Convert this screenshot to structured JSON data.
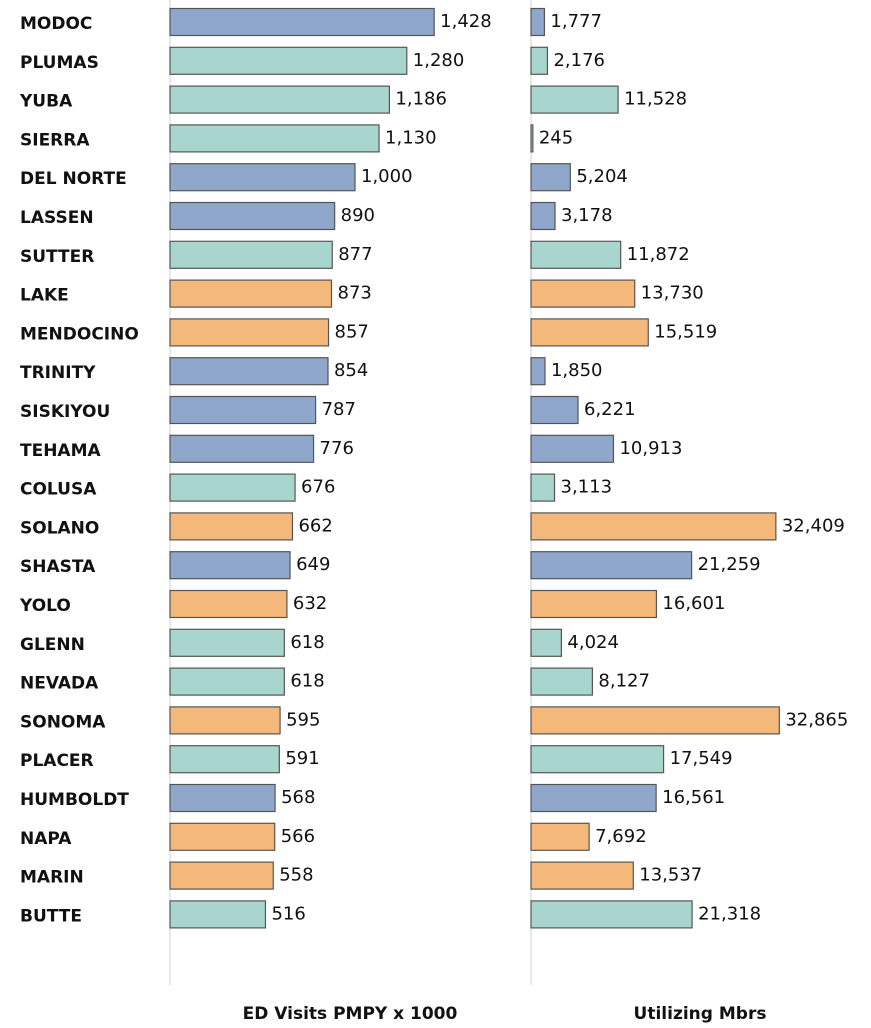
{
  "chart_data": {
    "type": "bar",
    "orientation": "horizontal",
    "categories": [
      "MODOC",
      "PLUMAS",
      "YUBA",
      "SIERRA",
      "DEL NORTE",
      "LASSEN",
      "SUTTER",
      "LAKE",
      "MENDOCINO",
      "TRINITY",
      "SISKIYOU",
      "TEHAMA",
      "COLUSA",
      "SOLANO",
      "SHASTA",
      "YOLO",
      "GLENN",
      "NEVADA",
      "SONOMA",
      "PLACER",
      "HUMBOLDT",
      "NAPA",
      "MARIN",
      "BUTTE"
    ],
    "bar_colors": [
      "#8fa7ca",
      "#a8d5cd",
      "#a8d5cd",
      "#a8d5cd",
      "#8fa7ca",
      "#8fa7ca",
      "#a8d5cd",
      "#f5b87b",
      "#f5b87b",
      "#8fa7ca",
      "#8fa7ca",
      "#8fa7ca",
      "#a8d5cd",
      "#f5b87b",
      "#8fa7ca",
      "#f5b87b",
      "#a8d5cd",
      "#a8d5cd",
      "#f5b87b",
      "#a8d5cd",
      "#8fa7ca",
      "#f5b87b",
      "#f5b87b",
      "#a8d5cd"
    ],
    "series": [
      {
        "name": "ED Visits PMPY x 1000",
        "xlim": [
          0,
          2000
        ],
        "values": [
          1428,
          1280,
          1186,
          1130,
          1000,
          890,
          877,
          873,
          857,
          854,
          787,
          776,
          676,
          662,
          649,
          632,
          618,
          618,
          595,
          591,
          568,
          566,
          558,
          516
        ],
        "value_labels": [
          "1,428",
          "1,280",
          "1,186",
          "1,130",
          "1,000",
          "890",
          "877",
          "873",
          "857",
          "854",
          "787",
          "776",
          "676",
          "662",
          "649",
          "632",
          "618",
          "618",
          "595",
          "591",
          "568",
          "566",
          "558",
          "516"
        ]
      },
      {
        "name": "Utilizing Mbrs",
        "xlim": [
          0,
          45000
        ],
        "values": [
          1777,
          2176,
          11528,
          245,
          5204,
          3178,
          11872,
          13730,
          15519,
          1850,
          6221,
          10913,
          3113,
          32409,
          21259,
          16601,
          4024,
          8127,
          32865,
          17549,
          16561,
          7692,
          13537,
          21318
        ],
        "value_labels": [
          "1,777",
          "2,176",
          "11,528",
          "245",
          "5,204",
          "3,178",
          "11,872",
          "13,730",
          "15,519",
          "1,850",
          "6,221",
          "10,913",
          "3,113",
          "32,409",
          "21,259",
          "16,601",
          "4,024",
          "8,127",
          "32,865",
          "17,549",
          "16,561",
          "7,692",
          "13,537",
          "21,318"
        ]
      }
    ]
  }
}
